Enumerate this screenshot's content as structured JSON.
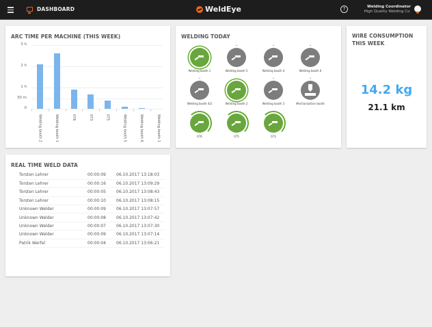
{
  "header": {
    "section": "DASHBOARD",
    "brand": "WeldEye",
    "help": "?",
    "user_role": "Welding Coordinator",
    "company": "High Quality Welding Co."
  },
  "arc_time": {
    "title": "ARC TIME PER MACHINE (THIS WEEK)"
  },
  "chart_data": {
    "type": "bar",
    "title": "ARC TIME PER MACHINE (THIS WEEK)",
    "categories": [
      "Welding booth 2",
      "Welding booth 1",
      "076",
      "073",
      "075",
      "Welding booth 5",
      "Welding booth 6",
      "Welding booth 1"
    ],
    "values_minutes": [
      126,
      156,
      54,
      40,
      23,
      5,
      1.5,
      0
    ],
    "yticks": [
      "0",
      "30 m",
      "1 h",
      "2 h",
      "3 h"
    ],
    "ylim_minutes": [
      0,
      180
    ],
    "grid": true,
    "legend": false,
    "color": "#7cb5ec"
  },
  "welding_today": {
    "title": "WELDING TODAY",
    "booths": [
      {
        "label": "Welding booth 1",
        "state": "active"
      },
      {
        "label": "Welding booth 5",
        "state": "idle"
      },
      {
        "label": "Welding booth 4",
        "state": "idle"
      },
      {
        "label": "Welding booth 6",
        "state": "idle"
      },
      {
        "label": "Welding booth 4/2",
        "state": "idle"
      },
      {
        "label": "Welding booth 2",
        "state": "active"
      },
      {
        "label": "Welding booth 3",
        "state": "idle"
      },
      {
        "label": "Mechanization booth",
        "state": "idle"
      },
      {
        "label": "076",
        "state": "progress"
      },
      {
        "label": "075",
        "state": "progress"
      },
      {
        "label": "073",
        "state": "progress"
      }
    ],
    "colors": {
      "active": "#62ad2b",
      "idle": "#7d7d7d"
    }
  },
  "wire": {
    "title": "WIRE CONSUMPTION THIS WEEK",
    "weight": "14.2 kg",
    "length": "21.1 km"
  },
  "realtime": {
    "title": "REAL TIME WELD DATA",
    "rows": [
      [
        "Torsten Lehrer",
        "00:00:09",
        "06.10.2017 13:18:03"
      ],
      [
        "Torsten Lehrer",
        "00:00:16",
        "06.10.2017 13:09:29"
      ],
      [
        "Torsten Lehrer",
        "00:00:05",
        "06.10.2017 13:08:43"
      ],
      [
        "Torsten Lehrer",
        "00:00:10",
        "06.10.2017 13:08:15"
      ],
      [
        "Unknown Welder",
        "00:00:09",
        "06.10.2017 13:07:57"
      ],
      [
        "Unknown Welder",
        "00:00:08",
        "06.10.2017 13:07:42"
      ],
      [
        "Unknown Welder",
        "00:00:07",
        "06.10.2017 13:07:30"
      ],
      [
        "Unknown Welder",
        "00:00:09",
        "06.10.2017 13:07:14"
      ],
      [
        "Patrik Werfel",
        "00:00:04",
        "06.10.2017 13:06:21"
      ]
    ]
  }
}
